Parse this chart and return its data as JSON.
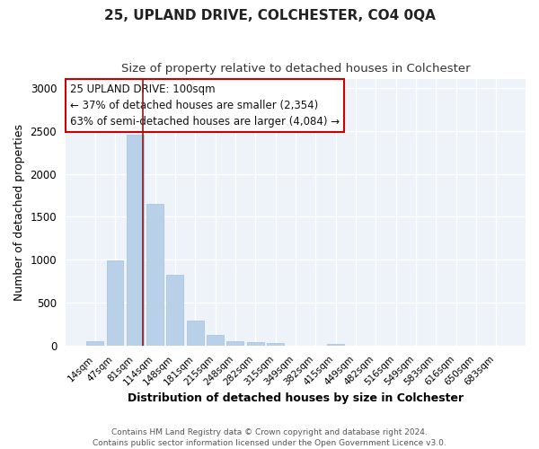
{
  "title": "25, UPLAND DRIVE, COLCHESTER, CO4 0QA",
  "subtitle": "Size of property relative to detached houses in Colchester",
  "xlabel": "Distribution of detached houses by size in Colchester",
  "ylabel": "Number of detached properties",
  "categories": [
    "14sqm",
    "47sqm",
    "81sqm",
    "114sqm",
    "148sqm",
    "181sqm",
    "215sqm",
    "248sqm",
    "282sqm",
    "315sqm",
    "349sqm",
    "382sqm",
    "415sqm",
    "449sqm",
    "482sqm",
    "516sqm",
    "549sqm",
    "583sqm",
    "616sqm",
    "650sqm",
    "683sqm"
  ],
  "values": [
    55,
    990,
    2460,
    1650,
    820,
    290,
    125,
    55,
    45,
    30,
    0,
    0,
    20,
    0,
    0,
    0,
    0,
    0,
    0,
    0,
    0
  ],
  "bar_color": "#b8d0e8",
  "bar_edge_color": "#a0c0dc",
  "vline_position": 2.4,
  "vline_color": "#8b1a1a",
  "ylim": [
    0,
    3100
  ],
  "yticks": [
    0,
    500,
    1000,
    1500,
    2000,
    2500,
    3000
  ],
  "annotation_title": "25 UPLAND DRIVE: 100sqm",
  "annotation_line1": "← 37% of detached houses are smaller (2,354)",
  "annotation_line2": "63% of semi-detached houses are larger (4,084) →",
  "annotation_box_color": "#ffffff",
  "annotation_box_edge": "#cc0000",
  "footer_line1": "Contains HM Land Registry data © Crown copyright and database right 2024.",
  "footer_line2": "Contains public sector information licensed under the Open Government Licence v3.0.",
  "plot_bg_color": "#eef3fa",
  "fig_bg_color": "#ffffff",
  "grid_color": "#ffffff",
  "title_fontsize": 11,
  "subtitle_fontsize": 9.5,
  "annotation_fontsize": 8.5
}
